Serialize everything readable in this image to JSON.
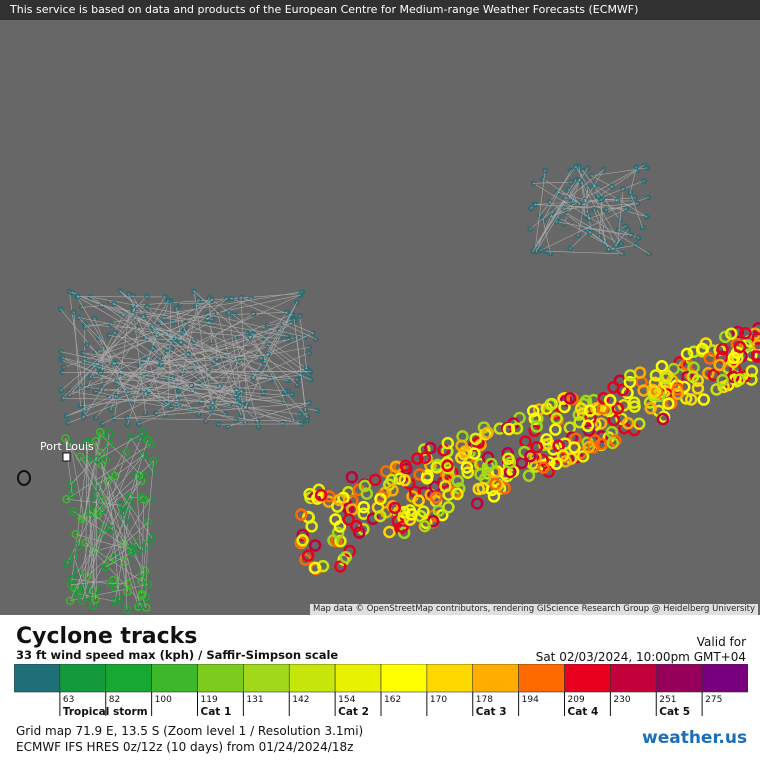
{
  "header": {
    "notice": "This service is based on data and products of the European Centre for Medium-range Weather Forecasts (ECMWF)"
  },
  "map": {
    "place_label": "Port Louis",
    "attribution": "Map data © OpenStreetMap contributors, rendering GIScience Research Group @ Heidelberg University"
  },
  "legend": {
    "title": "Cyclone tracks",
    "subtitle": "33 ft wind speed max (kph) / Saffir-Simpson scale",
    "valid_label": "Valid for",
    "valid_time": "Sat 02/03/2024, 10:00pm GMT+04",
    "colors": [
      "#1f6f78",
      "#129a3c",
      "#17a832",
      "#3cb82a",
      "#7ccc1e",
      "#a2d81a",
      "#c6e60c",
      "#e8f200",
      "#ffff00",
      "#ffd800",
      "#ffae00",
      "#ff6a00",
      "#e8001e",
      "#c4003c",
      "#96005a",
      "#78007e"
    ],
    "thresholds": [
      63,
      82,
      100,
      119,
      131,
      142,
      154,
      162,
      170,
      178,
      194,
      209,
      230,
      251,
      275
    ],
    "category_labels": [
      "Tropical storm",
      null,
      null,
      "Cat 1",
      null,
      null,
      "Cat 2",
      null,
      null,
      "Cat 3",
      null,
      "Cat 4",
      null,
      "Cat 5",
      null
    ]
  },
  "footer": {
    "grid_info": "Grid map 71.9 E, 13.5 S (Zoom level 1 / Resolution 3.1mi)",
    "model_info": "ECMWF IFS HRES 0z/12z (10 days) from  01/24/2024/18z",
    "logo": "weather.us"
  }
}
